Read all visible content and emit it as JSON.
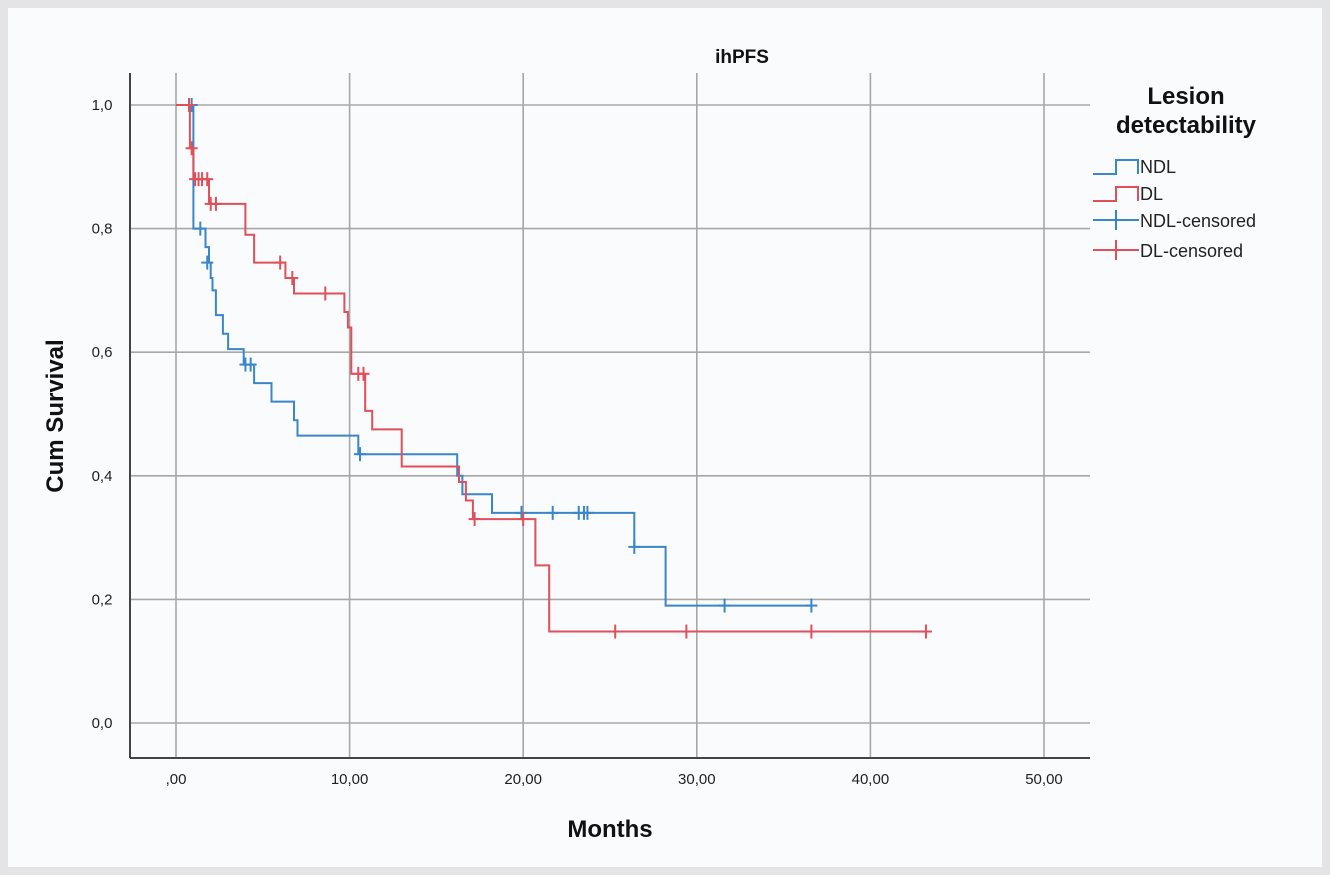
{
  "chart_data": {
    "type": "line",
    "title": "ihPFS",
    "xlabel": "Months",
    "ylabel": "Cum Survival",
    "xlim": [
      0,
      50
    ],
    "ylim": [
      0,
      1
    ],
    "x_ticks": [
      0,
      10,
      20,
      30,
      40,
      50
    ],
    "x_tick_labels": [
      ",00",
      "10,00",
      "20,00",
      "30,00",
      "40,00",
      "50,00"
    ],
    "y_ticks": [
      0,
      0.2,
      0.4,
      0.6,
      0.8,
      1.0
    ],
    "y_tick_labels": [
      "0,0",
      "0,2",
      "0,4",
      "0,6",
      "0,8",
      "1,0"
    ],
    "grid": true,
    "legend_position": "right",
    "legend": {
      "title_line1": "Lesion",
      "title_line2": "detectability",
      "entries": [
        "NDL",
        "DL",
        "NDL-censored",
        "DL-censored"
      ]
    },
    "series": [
      {
        "name": "NDL",
        "color": "#3a86c8",
        "steps": [
          [
            0,
            1.0
          ],
          [
            0.8,
            1.0
          ],
          [
            1.0,
            0.9
          ],
          [
            1.0,
            0.8
          ],
          [
            1.5,
            0.8
          ],
          [
            1.7,
            0.77
          ],
          [
            1.9,
            0.745
          ],
          [
            2.0,
            0.72
          ],
          [
            2.1,
            0.7
          ],
          [
            2.3,
            0.66
          ],
          [
            2.7,
            0.63
          ],
          [
            3.0,
            0.605
          ],
          [
            3.8,
            0.605
          ],
          [
            3.9,
            0.58
          ],
          [
            4.5,
            0.55
          ],
          [
            5.5,
            0.52
          ],
          [
            6.7,
            0.52
          ],
          [
            6.8,
            0.49
          ],
          [
            7.0,
            0.465
          ],
          [
            10.3,
            0.465
          ],
          [
            10.5,
            0.435
          ],
          [
            16.0,
            0.435
          ],
          [
            16.2,
            0.4
          ],
          [
            16.5,
            0.37
          ],
          [
            18.0,
            0.37
          ],
          [
            18.2,
            0.34
          ],
          [
            26.3,
            0.34
          ],
          [
            26.4,
            0.285
          ],
          [
            28.1,
            0.285
          ],
          [
            28.2,
            0.19
          ],
          [
            36.6,
            0.19
          ]
        ],
        "censored": [
          [
            0.9,
            1.0
          ],
          [
            1.4,
            0.8
          ],
          [
            1.8,
            0.745
          ],
          [
            4.0,
            0.58
          ],
          [
            4.3,
            0.58
          ],
          [
            10.6,
            0.435
          ],
          [
            19.9,
            0.34
          ],
          [
            21.7,
            0.34
          ],
          [
            23.2,
            0.34
          ],
          [
            23.5,
            0.34
          ],
          [
            23.7,
            0.34
          ],
          [
            26.4,
            0.285
          ],
          [
            31.6,
            0.19
          ],
          [
            36.6,
            0.19
          ]
        ]
      },
      {
        "name": "DL",
        "color": "#e0505a",
        "steps": [
          [
            0,
            1.0
          ],
          [
            0.7,
            1.0
          ],
          [
            0.8,
            0.93
          ],
          [
            1.0,
            0.88
          ],
          [
            1.8,
            0.88
          ],
          [
            1.9,
            0.84
          ],
          [
            3.9,
            0.84
          ],
          [
            4.0,
            0.79
          ],
          [
            4.4,
            0.79
          ],
          [
            4.5,
            0.745
          ],
          [
            6.1,
            0.745
          ],
          [
            6.3,
            0.72
          ],
          [
            6.6,
            0.72
          ],
          [
            6.8,
            0.695
          ],
          [
            9.5,
            0.695
          ],
          [
            9.7,
            0.665
          ],
          [
            9.9,
            0.64
          ],
          [
            10.1,
            0.565
          ],
          [
            10.8,
            0.565
          ],
          [
            10.9,
            0.505
          ],
          [
            11.3,
            0.475
          ],
          [
            12.9,
            0.475
          ],
          [
            13.0,
            0.415
          ],
          [
            16.0,
            0.415
          ],
          [
            16.3,
            0.39
          ],
          [
            16.7,
            0.36
          ],
          [
            17.1,
            0.33
          ],
          [
            20.6,
            0.33
          ],
          [
            20.7,
            0.255
          ],
          [
            21.3,
            0.255
          ],
          [
            21.5,
            0.148
          ],
          [
            43.2,
            0.148
          ]
        ],
        "censored": [
          [
            0.75,
            1.0
          ],
          [
            0.9,
            0.93
          ],
          [
            1.1,
            0.88
          ],
          [
            1.3,
            0.88
          ],
          [
            1.5,
            0.88
          ],
          [
            1.8,
            0.88
          ],
          [
            2.0,
            0.84
          ],
          [
            2.3,
            0.84
          ],
          [
            6.0,
            0.745
          ],
          [
            6.7,
            0.72
          ],
          [
            8.6,
            0.695
          ],
          [
            10.5,
            0.565
          ],
          [
            10.8,
            0.565
          ],
          [
            17.2,
            0.33
          ],
          [
            20.0,
            0.33
          ],
          [
            25.3,
            0.148
          ],
          [
            29.4,
            0.148
          ],
          [
            36.6,
            0.148
          ],
          [
            43.2,
            0.148
          ]
        ]
      }
    ]
  }
}
